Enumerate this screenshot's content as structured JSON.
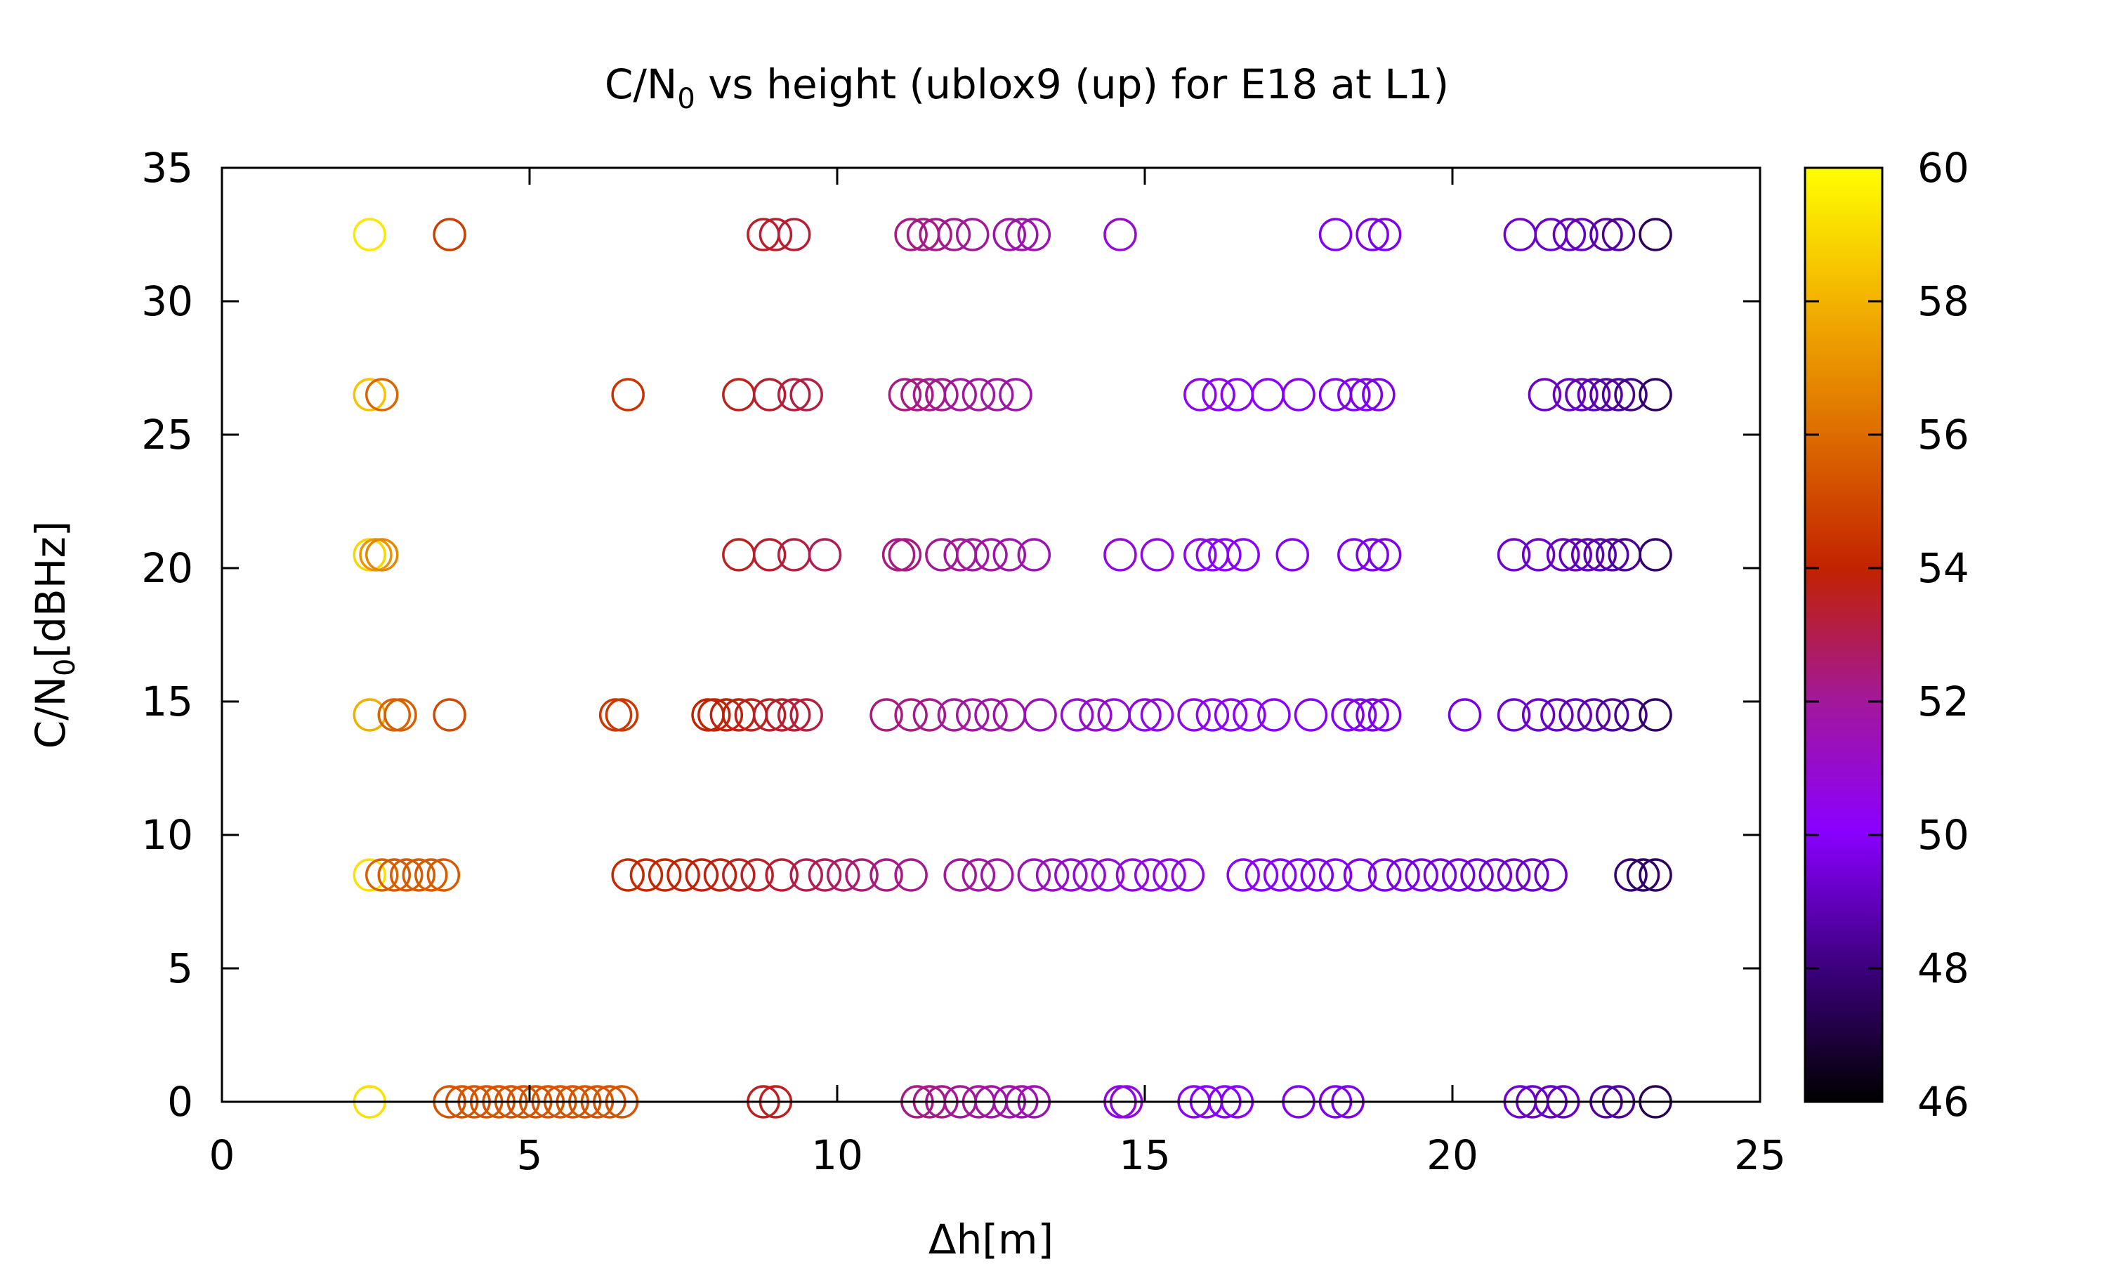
{
  "chart_data": {
    "type": "scatter",
    "title": {
      "pre": "C/N",
      "sub": "0",
      "post": " vs height (ublox9 (up) for E18 at L1)"
    },
    "xlabel": "Δh[m]",
    "ylabel": {
      "pre": "C/N",
      "sub": "0",
      "post": "[dBHz]"
    },
    "xlim": [
      0,
      25
    ],
    "ylim": [
      0,
      35
    ],
    "xticks": [
      "0",
      "5",
      "10",
      "15",
      "20",
      "25"
    ],
    "yticks": [
      "0",
      "5",
      "10",
      "15",
      "20",
      "25",
      "30",
      "35"
    ],
    "grid": false,
    "marker": "open-circle",
    "colorbar": {
      "range": [
        46,
        60
      ],
      "ticks": [
        "46",
        "48",
        "50",
        "52",
        "54",
        "56",
        "58",
        "60"
      ],
      "colormap": [
        "#000000",
        "#3a007a",
        "#8a00ff",
        "#a2189a",
        "#c22200",
        "#dc6a00",
        "#f3b400",
        "#ffff00"
      ]
    },
    "series": [
      {
        "y": 0,
        "points": [
          {
            "x": 2.4,
            "c": 59.2
          },
          {
            "x": 3.7,
            "c": 55.4
          },
          {
            "x": 3.9,
            "c": 55.4
          },
          {
            "x": 4.1,
            "c": 55.4
          },
          {
            "x": 4.3,
            "c": 55.4
          },
          {
            "x": 4.5,
            "c": 55.4
          },
          {
            "x": 4.7,
            "c": 55.4
          },
          {
            "x": 4.9,
            "c": 55.4
          },
          {
            "x": 5.1,
            "c": 55.4
          },
          {
            "x": 5.3,
            "c": 55.4
          },
          {
            "x": 5.5,
            "c": 55.4
          },
          {
            "x": 5.7,
            "c": 55.4
          },
          {
            "x": 5.9,
            "c": 55.4
          },
          {
            "x": 6.1,
            "c": 55.4
          },
          {
            "x": 6.3,
            "c": 55.4
          },
          {
            "x": 6.5,
            "c": 55.4
          },
          {
            "x": 8.8,
            "c": 53.6
          },
          {
            "x": 9.0,
            "c": 53.6
          },
          {
            "x": 11.3,
            "c": 52.3
          },
          {
            "x": 11.5,
            "c": 52.3
          },
          {
            "x": 11.7,
            "c": 52.2
          },
          {
            "x": 12.0,
            "c": 52.0
          },
          {
            "x": 12.3,
            "c": 51.9
          },
          {
            "x": 12.5,
            "c": 51.8
          },
          {
            "x": 12.8,
            "c": 51.7
          },
          {
            "x": 13.0,
            "c": 51.6
          },
          {
            "x": 13.2,
            "c": 51.5
          },
          {
            "x": 14.6,
            "c": 50.6
          },
          {
            "x": 14.7,
            "c": 50.6
          },
          {
            "x": 15.8,
            "c": 50.2
          },
          {
            "x": 16.0,
            "c": 50.1
          },
          {
            "x": 16.3,
            "c": 50.0
          },
          {
            "x": 16.5,
            "c": 50.0
          },
          {
            "x": 17.5,
            "c": 49.8
          },
          {
            "x": 18.1,
            "c": 49.7
          },
          {
            "x": 18.3,
            "c": 49.7
          },
          {
            "x": 21.1,
            "c": 49.3
          },
          {
            "x": 21.3,
            "c": 49.2
          },
          {
            "x": 21.6,
            "c": 49.1
          },
          {
            "x": 21.8,
            "c": 49.1
          },
          {
            "x": 22.5,
            "c": 48.6
          },
          {
            "x": 22.7,
            "c": 48.5
          },
          {
            "x": 23.3,
            "c": 47.4
          }
        ]
      },
      {
        "y": 8.5,
        "points": [
          {
            "x": 2.4,
            "c": 59.2
          },
          {
            "x": 2.6,
            "c": 55.8
          },
          {
            "x": 2.8,
            "c": 55.6
          },
          {
            "x": 3.0,
            "c": 55.6
          },
          {
            "x": 3.2,
            "c": 55.6
          },
          {
            "x": 3.4,
            "c": 55.6
          },
          {
            "x": 3.6,
            "c": 55.6
          },
          {
            "x": 6.6,
            "c": 54.2
          },
          {
            "x": 6.9,
            "c": 54.2
          },
          {
            "x": 7.2,
            "c": 54.1
          },
          {
            "x": 7.5,
            "c": 54.0
          },
          {
            "x": 7.8,
            "c": 53.9
          },
          {
            "x": 8.1,
            "c": 53.8
          },
          {
            "x": 8.4,
            "c": 53.6
          },
          {
            "x": 8.7,
            "c": 53.5
          },
          {
            "x": 9.1,
            "c": 53.3
          },
          {
            "x": 9.5,
            "c": 53.0
          },
          {
            "x": 9.8,
            "c": 52.9
          },
          {
            "x": 10.1,
            "c": 52.7
          },
          {
            "x": 10.4,
            "c": 52.5
          },
          {
            "x": 10.8,
            "c": 52.3
          },
          {
            "x": 11.2,
            "c": 52.2
          },
          {
            "x": 12.0,
            "c": 52.0
          },
          {
            "x": 12.3,
            "c": 51.9
          },
          {
            "x": 12.6,
            "c": 51.8
          },
          {
            "x": 13.2,
            "c": 51.4
          },
          {
            "x": 13.5,
            "c": 51.2
          },
          {
            "x": 13.8,
            "c": 51.0
          },
          {
            "x": 14.1,
            "c": 50.9
          },
          {
            "x": 14.4,
            "c": 50.8
          },
          {
            "x": 14.8,
            "c": 50.7
          },
          {
            "x": 15.1,
            "c": 50.6
          },
          {
            "x": 15.4,
            "c": 50.5
          },
          {
            "x": 15.7,
            "c": 50.4
          },
          {
            "x": 16.6,
            "c": 50.1
          },
          {
            "x": 16.9,
            "c": 50.0
          },
          {
            "x": 17.2,
            "c": 49.9
          },
          {
            "x": 17.5,
            "c": 49.9
          },
          {
            "x": 17.8,
            "c": 49.8
          },
          {
            "x": 18.1,
            "c": 49.8
          },
          {
            "x": 18.5,
            "c": 49.7
          },
          {
            "x": 18.9,
            "c": 49.7
          },
          {
            "x": 19.2,
            "c": 49.6
          },
          {
            "x": 19.5,
            "c": 49.6
          },
          {
            "x": 19.8,
            "c": 49.5
          },
          {
            "x": 20.1,
            "c": 49.5
          },
          {
            "x": 20.4,
            "c": 49.4
          },
          {
            "x": 20.7,
            "c": 49.4
          },
          {
            "x": 21.0,
            "c": 49.3
          },
          {
            "x": 21.3,
            "c": 49.2
          },
          {
            "x": 21.6,
            "c": 49.2
          },
          {
            "x": 22.9,
            "c": 47.9
          },
          {
            "x": 23.1,
            "c": 47.7
          },
          {
            "x": 23.3,
            "c": 47.6
          }
        ]
      },
      {
        "y": 14.5,
        "points": [
          {
            "x": 2.4,
            "c": 57.8
          },
          {
            "x": 2.8,
            "c": 55.8
          },
          {
            "x": 2.9,
            "c": 55.7
          },
          {
            "x": 3.7,
            "c": 55.1
          },
          {
            "x": 6.4,
            "c": 54.6
          },
          {
            "x": 6.5,
            "c": 54.6
          },
          {
            "x": 7.9,
            "c": 54.0
          },
          {
            "x": 8.0,
            "c": 54.0
          },
          {
            "x": 8.2,
            "c": 53.9
          },
          {
            "x": 8.4,
            "c": 53.8
          },
          {
            "x": 8.6,
            "c": 53.7
          },
          {
            "x": 8.9,
            "c": 53.5
          },
          {
            "x": 9.1,
            "c": 53.4
          },
          {
            "x": 9.3,
            "c": 53.3
          },
          {
            "x": 9.5,
            "c": 53.2
          },
          {
            "x": 10.8,
            "c": 52.4
          },
          {
            "x": 11.2,
            "c": 52.3
          },
          {
            "x": 11.5,
            "c": 52.2
          },
          {
            "x": 11.9,
            "c": 52.0
          },
          {
            "x": 12.2,
            "c": 51.9
          },
          {
            "x": 12.5,
            "c": 51.8
          },
          {
            "x": 12.8,
            "c": 51.7
          },
          {
            "x": 13.3,
            "c": 51.4
          },
          {
            "x": 13.9,
            "c": 51.0
          },
          {
            "x": 14.2,
            "c": 50.9
          },
          {
            "x": 14.5,
            "c": 50.8
          },
          {
            "x": 15.0,
            "c": 50.6
          },
          {
            "x": 15.2,
            "c": 50.6
          },
          {
            "x": 15.8,
            "c": 50.4
          },
          {
            "x": 16.1,
            "c": 50.3
          },
          {
            "x": 16.4,
            "c": 50.2
          },
          {
            "x": 16.7,
            "c": 50.1
          },
          {
            "x": 17.1,
            "c": 50.0
          },
          {
            "x": 17.7,
            "c": 49.9
          },
          {
            "x": 18.3,
            "c": 49.8
          },
          {
            "x": 18.5,
            "c": 49.8
          },
          {
            "x": 18.7,
            "c": 49.7
          },
          {
            "x": 18.9,
            "c": 49.7
          },
          {
            "x": 20.2,
            "c": 49.5
          },
          {
            "x": 21.0,
            "c": 49.3
          },
          {
            "x": 21.4,
            "c": 49.2
          },
          {
            "x": 21.7,
            "c": 49.1
          },
          {
            "x": 22.0,
            "c": 49.0
          },
          {
            "x": 22.3,
            "c": 48.8
          },
          {
            "x": 22.6,
            "c": 48.6
          },
          {
            "x": 22.9,
            "c": 48.3
          },
          {
            "x": 23.3,
            "c": 47.6
          }
        ]
      },
      {
        "y": 20.5,
        "points": [
          {
            "x": 2.4,
            "c": 58.9
          },
          {
            "x": 2.5,
            "c": 57.2
          },
          {
            "x": 2.6,
            "c": 56.8
          },
          {
            "x": 8.4,
            "c": 53.6
          },
          {
            "x": 8.9,
            "c": 53.4
          },
          {
            "x": 9.3,
            "c": 53.2
          },
          {
            "x": 9.8,
            "c": 52.9
          },
          {
            "x": 11.0,
            "c": 52.3
          },
          {
            "x": 11.1,
            "c": 52.3
          },
          {
            "x": 11.7,
            "c": 52.1
          },
          {
            "x": 12.0,
            "c": 52.0
          },
          {
            "x": 12.2,
            "c": 51.9
          },
          {
            "x": 12.5,
            "c": 51.8
          },
          {
            "x": 12.8,
            "c": 51.7
          },
          {
            "x": 13.2,
            "c": 51.5
          },
          {
            "x": 14.6,
            "c": 50.7
          },
          {
            "x": 15.2,
            "c": 50.5
          },
          {
            "x": 15.9,
            "c": 50.3
          },
          {
            "x": 16.1,
            "c": 50.2
          },
          {
            "x": 16.3,
            "c": 50.1
          },
          {
            "x": 16.6,
            "c": 50.0
          },
          {
            "x": 17.4,
            "c": 49.9
          },
          {
            "x": 18.4,
            "c": 49.8
          },
          {
            "x": 18.7,
            "c": 49.7
          },
          {
            "x": 18.9,
            "c": 49.7
          },
          {
            "x": 21.0,
            "c": 49.3
          },
          {
            "x": 21.4,
            "c": 49.2
          },
          {
            "x": 21.8,
            "c": 49.1
          },
          {
            "x": 22.0,
            "c": 49.0
          },
          {
            "x": 22.2,
            "c": 48.9
          },
          {
            "x": 22.4,
            "c": 48.8
          },
          {
            "x": 22.6,
            "c": 48.6
          },
          {
            "x": 22.8,
            "c": 48.4
          },
          {
            "x": 23.3,
            "c": 47.7
          }
        ]
      },
      {
        "y": 26.5,
        "points": [
          {
            "x": 2.4,
            "c": 58.4
          },
          {
            "x": 2.6,
            "c": 55.9
          },
          {
            "x": 6.6,
            "c": 54.5
          },
          {
            "x": 8.4,
            "c": 53.7
          },
          {
            "x": 8.9,
            "c": 53.4
          },
          {
            "x": 9.3,
            "c": 53.2
          },
          {
            "x": 9.5,
            "c": 53.1
          },
          {
            "x": 11.1,
            "c": 52.3
          },
          {
            "x": 11.3,
            "c": 52.3
          },
          {
            "x": 11.5,
            "c": 52.2
          },
          {
            "x": 11.7,
            "c": 52.1
          },
          {
            "x": 12.0,
            "c": 52.0
          },
          {
            "x": 12.3,
            "c": 51.9
          },
          {
            "x": 12.6,
            "c": 51.8
          },
          {
            "x": 12.9,
            "c": 51.7
          },
          {
            "x": 15.9,
            "c": 50.3
          },
          {
            "x": 16.2,
            "c": 50.2
          },
          {
            "x": 16.5,
            "c": 50.1
          },
          {
            "x": 17.0,
            "c": 50.0
          },
          {
            "x": 17.5,
            "c": 49.9
          },
          {
            "x": 18.1,
            "c": 49.8
          },
          {
            "x": 18.4,
            "c": 49.8
          },
          {
            "x": 18.6,
            "c": 49.7
          },
          {
            "x": 18.8,
            "c": 49.7
          },
          {
            "x": 21.5,
            "c": 49.2
          },
          {
            "x": 21.9,
            "c": 49.1
          },
          {
            "x": 22.1,
            "c": 49.0
          },
          {
            "x": 22.3,
            "c": 48.9
          },
          {
            "x": 22.5,
            "c": 48.7
          },
          {
            "x": 22.7,
            "c": 48.5
          },
          {
            "x": 22.9,
            "c": 48.2
          },
          {
            "x": 23.3,
            "c": 47.6
          }
        ]
      },
      {
        "y": 32.5,
        "points": [
          {
            "x": 2.4,
            "c": 59.4
          },
          {
            "x": 3.7,
            "c": 54.8
          },
          {
            "x": 8.8,
            "c": 53.5
          },
          {
            "x": 9.0,
            "c": 53.4
          },
          {
            "x": 9.3,
            "c": 53.3
          },
          {
            "x": 11.2,
            "c": 52.3
          },
          {
            "x": 11.4,
            "c": 52.3
          },
          {
            "x": 11.6,
            "c": 52.2
          },
          {
            "x": 11.9,
            "c": 52.1
          },
          {
            "x": 12.2,
            "c": 52.0
          },
          {
            "x": 12.8,
            "c": 51.7
          },
          {
            "x": 13.0,
            "c": 51.6
          },
          {
            "x": 13.2,
            "c": 51.5
          },
          {
            "x": 14.6,
            "c": 50.9
          },
          {
            "x": 18.1,
            "c": 49.8
          },
          {
            "x": 18.7,
            "c": 49.7
          },
          {
            "x": 18.9,
            "c": 49.7
          },
          {
            "x": 21.1,
            "c": 49.3
          },
          {
            "x": 21.6,
            "c": 49.2
          },
          {
            "x": 21.9,
            "c": 49.1
          },
          {
            "x": 22.1,
            "c": 49.0
          },
          {
            "x": 22.5,
            "c": 48.7
          },
          {
            "x": 22.7,
            "c": 48.5
          },
          {
            "x": 23.3,
            "c": 47.5
          }
        ]
      }
    ]
  }
}
